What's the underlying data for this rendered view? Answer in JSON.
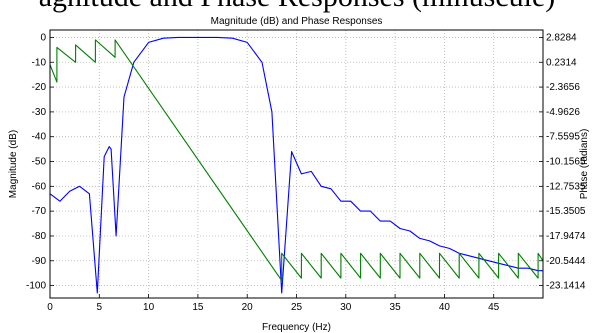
{
  "caption_text": "agnitude and Phase Responses (minuscule)",
  "chart_data": {
    "type": "line",
    "title": "Magnitude (dB) and Phase Responses",
    "xlabel": "Frequency (Hz)",
    "ylabel": "Magnitude (dB)",
    "ylabel_right": "Phase (radians)",
    "xlim": [
      0,
      50
    ],
    "ylim": [
      -105,
      3
    ],
    "xticks": [
      "0",
      "5",
      "10",
      "15",
      "20",
      "25",
      "30",
      "35",
      "40",
      "45"
    ],
    "yticks": [
      "0",
      "-10",
      "-20",
      "-30",
      "-40",
      "-50",
      "-60",
      "-70",
      "-80",
      "-90",
      "-100"
    ],
    "yticks_right": [
      "2.8284",
      "0.2314",
      "-2.3656",
      "-4.9626",
      "-7.5595",
      "-10.1565",
      "-12.7535",
      "-15.3505",
      "-17.9474",
      "-20.5444",
      "-23.1414"
    ],
    "grid": true,
    "colors": {
      "magnitude": "#0000ff",
      "phase": "#007f00"
    },
    "series": [
      {
        "name": "",
        "axis": "left",
        "passband": [
          8.5,
          21.5
        ],
        "x": [
          0,
          1,
          2,
          3,
          4,
          4.8,
          5.5,
          6,
          6.2,
          6.7,
          7.5,
          8.5,
          10,
          11.5,
          13,
          14.3,
          15.7,
          17,
          18.5,
          20,
          21.5,
          22.5,
          23.5,
          24.5,
          25.5,
          26.5,
          27.5,
          28.5,
          29.5,
          30.5,
          31.5,
          32.5,
          33.5,
          34.5,
          35.5,
          36.5,
          37.5,
          38.5,
          39.5,
          40.5,
          41.5,
          42.5,
          43.5,
          44.5,
          45.5,
          46.5,
          47.5,
          48.5,
          49.5,
          50
        ],
        "y": [
          -63,
          -66,
          -62,
          -60,
          -63,
          -103,
          -48,
          -44,
          -45,
          -80,
          -24,
          -10,
          -2,
          -0.3,
          0,
          0,
          0,
          0,
          -0.3,
          -2,
          -10,
          -30,
          -103,
          -46,
          -55,
          -54,
          -60,
          -61,
          -66,
          -66,
          -70,
          -70,
          -74,
          -74,
          -77,
          -78,
          -81,
          -82,
          -84,
          -85,
          -87,
          -88,
          -89,
          -90,
          -91,
          -92,
          -93,
          -93,
          -94,
          -94
        ]
      },
      {
        "name": "",
        "axis": "left",
        "x": [
          0,
          0.7,
          0.7,
          2.6,
          2.6,
          4.6,
          4.6,
          6.6,
          6.6,
          23.5,
          23.5,
          25.5,
          25.5,
          27.5,
          27.5,
          29.5,
          29.5,
          31.5,
          31.5,
          33.5,
          33.5,
          35.5,
          35.5,
          37.5,
          37.5,
          39.5,
          39.5,
          41.5,
          41.5,
          43.5,
          43.5,
          45.5,
          45.5,
          47.5,
          47.5,
          49.5,
          49.5,
          50
        ],
        "y": [
          -11,
          -18,
          -4,
          -10,
          -3,
          -10,
          -1,
          -8,
          -1,
          -98,
          -87,
          -97,
          -87,
          -97,
          -87,
          -97,
          -87,
          -97,
          -87,
          -97,
          -87,
          -97,
          -87,
          -97,
          -87,
          -97,
          -87,
          -97,
          -87,
          -97,
          -87,
          -97,
          -87,
          -97,
          -87,
          -97,
          -87,
          -90
        ]
      }
    ]
  }
}
